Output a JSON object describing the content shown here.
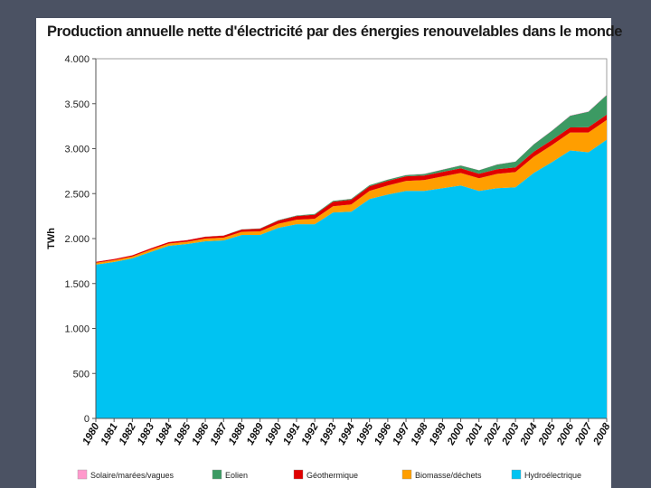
{
  "chart_data": {
    "type": "area",
    "title": "Production annuelle nette d'électricité par des énergies renouvelables dans le monde",
    "ylabel": "TWh",
    "xlabel": "",
    "ylim": [
      0,
      4000
    ],
    "yticks": [
      0,
      500,
      1000,
      1500,
      2000,
      2500,
      3000,
      3500,
      4000
    ],
    "ytick_labels": [
      "0",
      "500",
      "1.000",
      "1.500",
      "2.000",
      "2.500",
      "3.000",
      "3.500",
      "4.000"
    ],
    "x": [
      "1980",
      "1981",
      "1982",
      "1983",
      "1984",
      "1985",
      "1986",
      "1987",
      "1988",
      "1989",
      "1990",
      "1991",
      "1992",
      "1993",
      "1994",
      "1995",
      "1996",
      "1997",
      "1998",
      "1999",
      "2000",
      "2001",
      "2002",
      "2003",
      "2004",
      "2005",
      "2006",
      "2007",
      "2008"
    ],
    "stacked": true,
    "grid": false,
    "legend_position": "bottom",
    "series": [
      {
        "name": "Hydroélectrique",
        "color": "#00c3f2",
        "values": [
          1710,
          1740,
          1780,
          1850,
          1920,
          1940,
          1970,
          1980,
          2040,
          2040,
          2120,
          2160,
          2160,
          2290,
          2300,
          2440,
          2490,
          2530,
          2530,
          2560,
          2590,
          2530,
          2560,
          2570,
          2730,
          2850,
          2980,
          2960,
          3100
        ]
      },
      {
        "name": "Biomasse/déchets",
        "color": "#ff9e00",
        "values": [
          20,
          20,
          20,
          25,
          25,
          25,
          30,
          30,
          35,
          40,
          45,
          50,
          60,
          70,
          80,
          90,
          100,
          110,
          120,
          130,
          140,
          140,
          160,
          170,
          180,
          190,
          200,
          220,
          220
        ]
      },
      {
        "name": "Géothermique",
        "color": "#e00000",
        "values": [
          12,
          13,
          14,
          15,
          16,
          18,
          20,
          22,
          26,
          30,
          35,
          40,
          45,
          50,
          52,
          52,
          52,
          52,
          52,
          52,
          52,
          52,
          52,
          52,
          56,
          56,
          56,
          58,
          58
        ]
      },
      {
        "name": "Eolien",
        "color": "#3c9a63",
        "values": [
          0,
          0,
          0,
          0,
          0,
          0,
          1,
          2,
          3,
          4,
          5,
          6,
          8,
          9,
          10,
          12,
          14,
          15,
          17,
          25,
          31,
          38,
          52,
          63,
          82,
          104,
          130,
          173,
          219
        ]
      },
      {
        "name": "Solaire/marées/vagues",
        "color": "#ff99cc",
        "values": [
          1,
          1,
          1,
          1,
          1,
          1,
          1,
          1,
          1,
          1,
          1,
          1,
          1,
          1,
          1,
          1,
          1,
          2,
          2,
          2,
          2,
          2,
          2,
          2,
          2,
          3,
          3,
          4,
          5
        ]
      }
    ]
  }
}
